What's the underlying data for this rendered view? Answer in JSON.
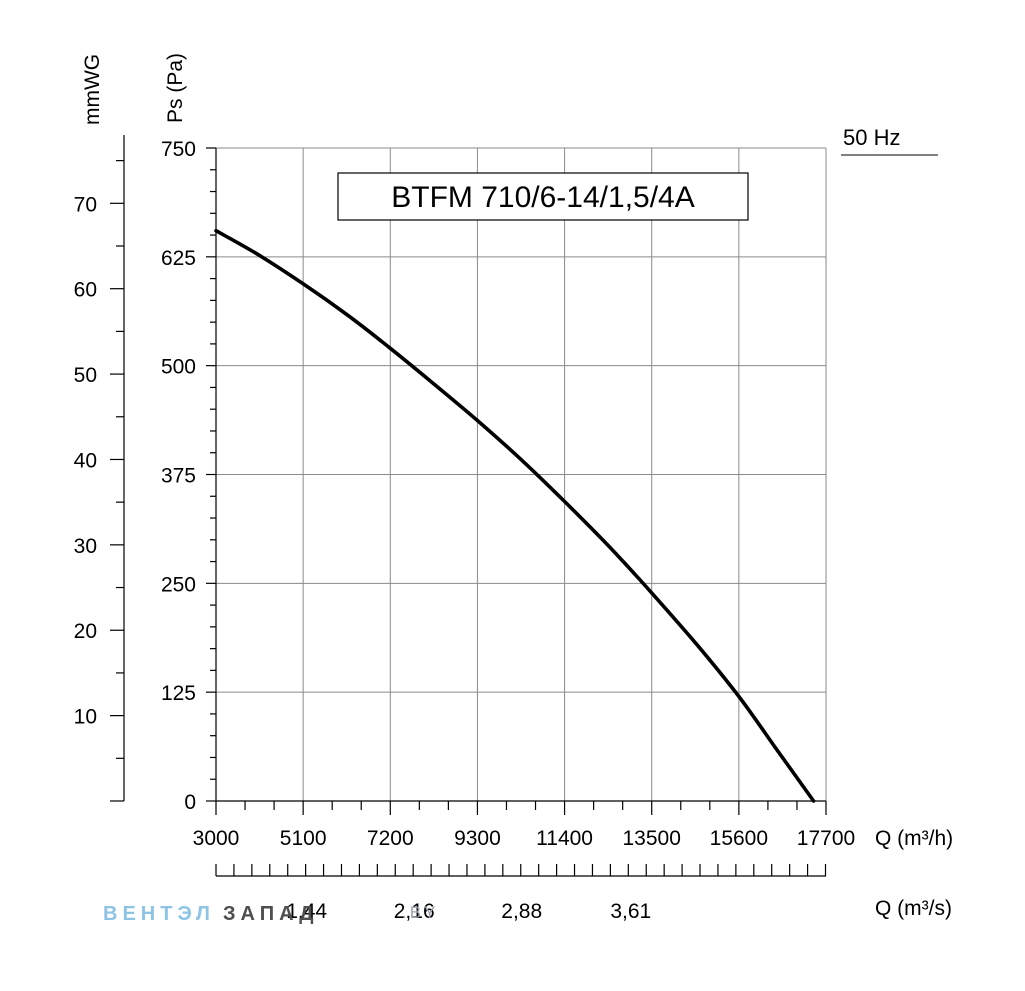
{
  "chart_data": {
    "type": "line",
    "title": "BTFM 710/6-14/1,5/4A",
    "frequency_label": "50 Hz",
    "x_label_primary": "Q (m³/h)",
    "x_label_secondary": "Q (m³/s)",
    "y_label_primary": "Ps (Pa)",
    "y_label_secondary": "mmWG",
    "xlim": [
      3000,
      17700
    ],
    "ylim": [
      0,
      750
    ],
    "x_ticks": [
      "3000",
      "5100",
      "7200",
      "9300",
      "11400",
      "13500",
      "15600",
      "17700"
    ],
    "y_ticks": [
      "0",
      "125",
      "250",
      "375",
      "500",
      "625",
      "750"
    ],
    "secondary_x_ticks": [
      {
        "label": "1,44",
        "value": 1.44
      },
      {
        "label": "2,16",
        "value": 2.16
      },
      {
        "label": "2,88",
        "value": 2.88
      },
      {
        "label": "3,61",
        "value": 3.61
      }
    ],
    "secondary_y_ticks": [
      {
        "label": "10",
        "value": 10
      },
      {
        "label": "20",
        "value": 20
      },
      {
        "label": "30",
        "value": 30
      },
      {
        "label": "40",
        "value": 40
      },
      {
        "label": "50",
        "value": 50
      },
      {
        "label": "60",
        "value": 60
      },
      {
        "label": "70",
        "value": 70
      }
    ],
    "grid": true,
    "series": [
      {
        "x": [
          3000,
          4000,
          5100,
          6200,
          7200,
          8200,
          9300,
          10400,
          11400,
          12500,
          13500,
          14600,
          15600,
          16500,
          17400
        ],
        "values": [
          655,
          628,
          594,
          557,
          520,
          481,
          437,
          390,
          344,
          291,
          239,
          179,
          120,
          60,
          0
        ]
      }
    ]
  },
  "watermark": {
    "part1": "ВЕНТЭЛ",
    "part2": "ЗАПАД",
    "part3": ".BY"
  }
}
